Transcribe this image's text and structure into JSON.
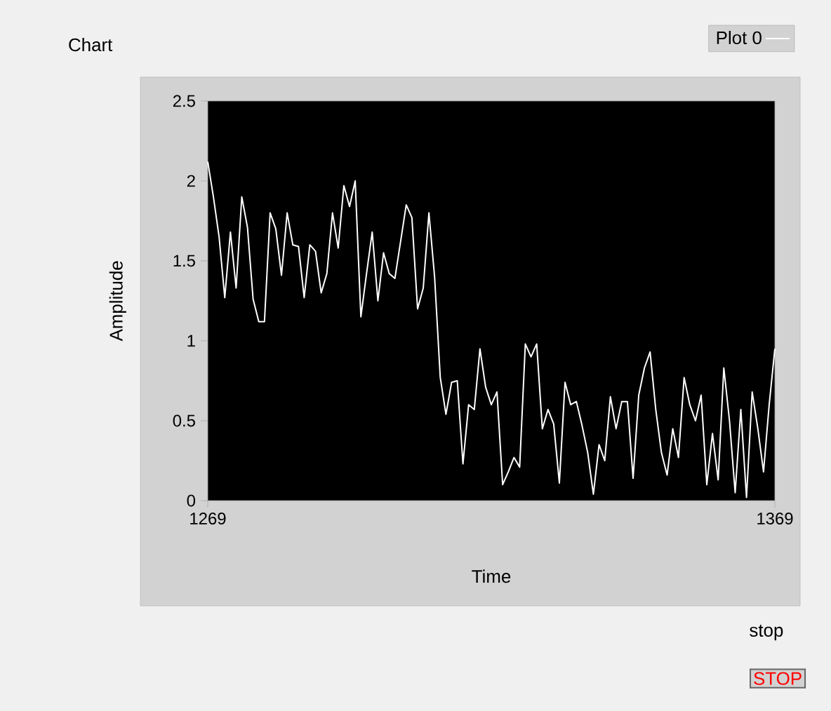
{
  "chart_data": {
    "type": "line",
    "title": "Chart",
    "xlabel": "Time",
    "ylabel": "Amplitude",
    "x": [
      1269,
      1270,
      1271,
      1272,
      1273,
      1274,
      1275,
      1276,
      1277,
      1278,
      1279,
      1280,
      1281,
      1282,
      1283,
      1284,
      1285,
      1286,
      1287,
      1288,
      1289,
      1290,
      1291,
      1292,
      1293,
      1294,
      1295,
      1296,
      1297,
      1298,
      1299,
      1300,
      1301,
      1302,
      1303,
      1304,
      1305,
      1306,
      1307,
      1308,
      1309,
      1310,
      1311,
      1312,
      1313,
      1314,
      1315,
      1316,
      1317,
      1318,
      1319,
      1320,
      1321,
      1322,
      1323,
      1324,
      1325,
      1326,
      1327,
      1328,
      1329,
      1330,
      1331,
      1332,
      1333,
      1334,
      1335,
      1336,
      1337,
      1338,
      1339,
      1340,
      1341,
      1342,
      1343,
      1344,
      1345,
      1346,
      1347,
      1348,
      1349,
      1350,
      1351,
      1352,
      1353,
      1354,
      1355,
      1356,
      1357,
      1358,
      1359,
      1360,
      1361,
      1362,
      1363,
      1364,
      1365,
      1366,
      1367,
      1368,
      1369
    ],
    "series": [
      {
        "name": "Plot 0",
        "color": "#ffffff",
        "values": [
          2.12,
          1.9,
          1.65,
          1.27,
          1.68,
          1.33,
          1.9,
          1.71,
          1.26,
          1.12,
          1.12,
          1.8,
          1.7,
          1.41,
          1.8,
          1.6,
          1.59,
          1.27,
          1.6,
          1.56,
          1.3,
          1.42,
          1.8,
          1.58,
          1.97,
          1.84,
          2.0,
          1.15,
          1.42,
          1.68,
          1.25,
          1.55,
          1.42,
          1.39,
          1.62,
          1.85,
          1.77,
          1.2,
          1.33,
          1.8,
          1.4,
          0.77,
          0.54,
          0.74,
          0.75,
          0.23,
          0.6,
          0.57,
          0.95,
          0.71,
          0.6,
          0.68,
          0.1,
          0.18,
          0.27,
          0.21,
          0.98,
          0.9,
          0.98,
          0.45,
          0.57,
          0.48,
          0.11,
          0.74,
          0.6,
          0.62,
          0.47,
          0.3,
          0.04,
          0.35,
          0.25,
          0.65,
          0.45,
          0.62,
          0.62,
          0.14,
          0.66,
          0.83,
          0.93,
          0.57,
          0.3,
          0.16,
          0.45,
          0.27,
          0.77,
          0.6,
          0.5,
          0.66,
          0.1,
          0.42,
          0.13,
          0.83,
          0.5,
          0.05,
          0.57,
          0.02,
          0.68,
          0.45,
          0.18,
          0.6,
          0.95
        ]
      }
    ],
    "xlim": [
      1269,
      1369
    ],
    "xticks": [
      1269,
      1369
    ],
    "ylim": [
      0,
      2.5
    ],
    "yticks": [
      0,
      0.5,
      1,
      1.5,
      2,
      2.5
    ],
    "grid": false,
    "legend": "top right",
    "marker": "none",
    "line_style": "solid",
    "annotations": [
      "stop",
      "STOP"
    ]
  }
}
